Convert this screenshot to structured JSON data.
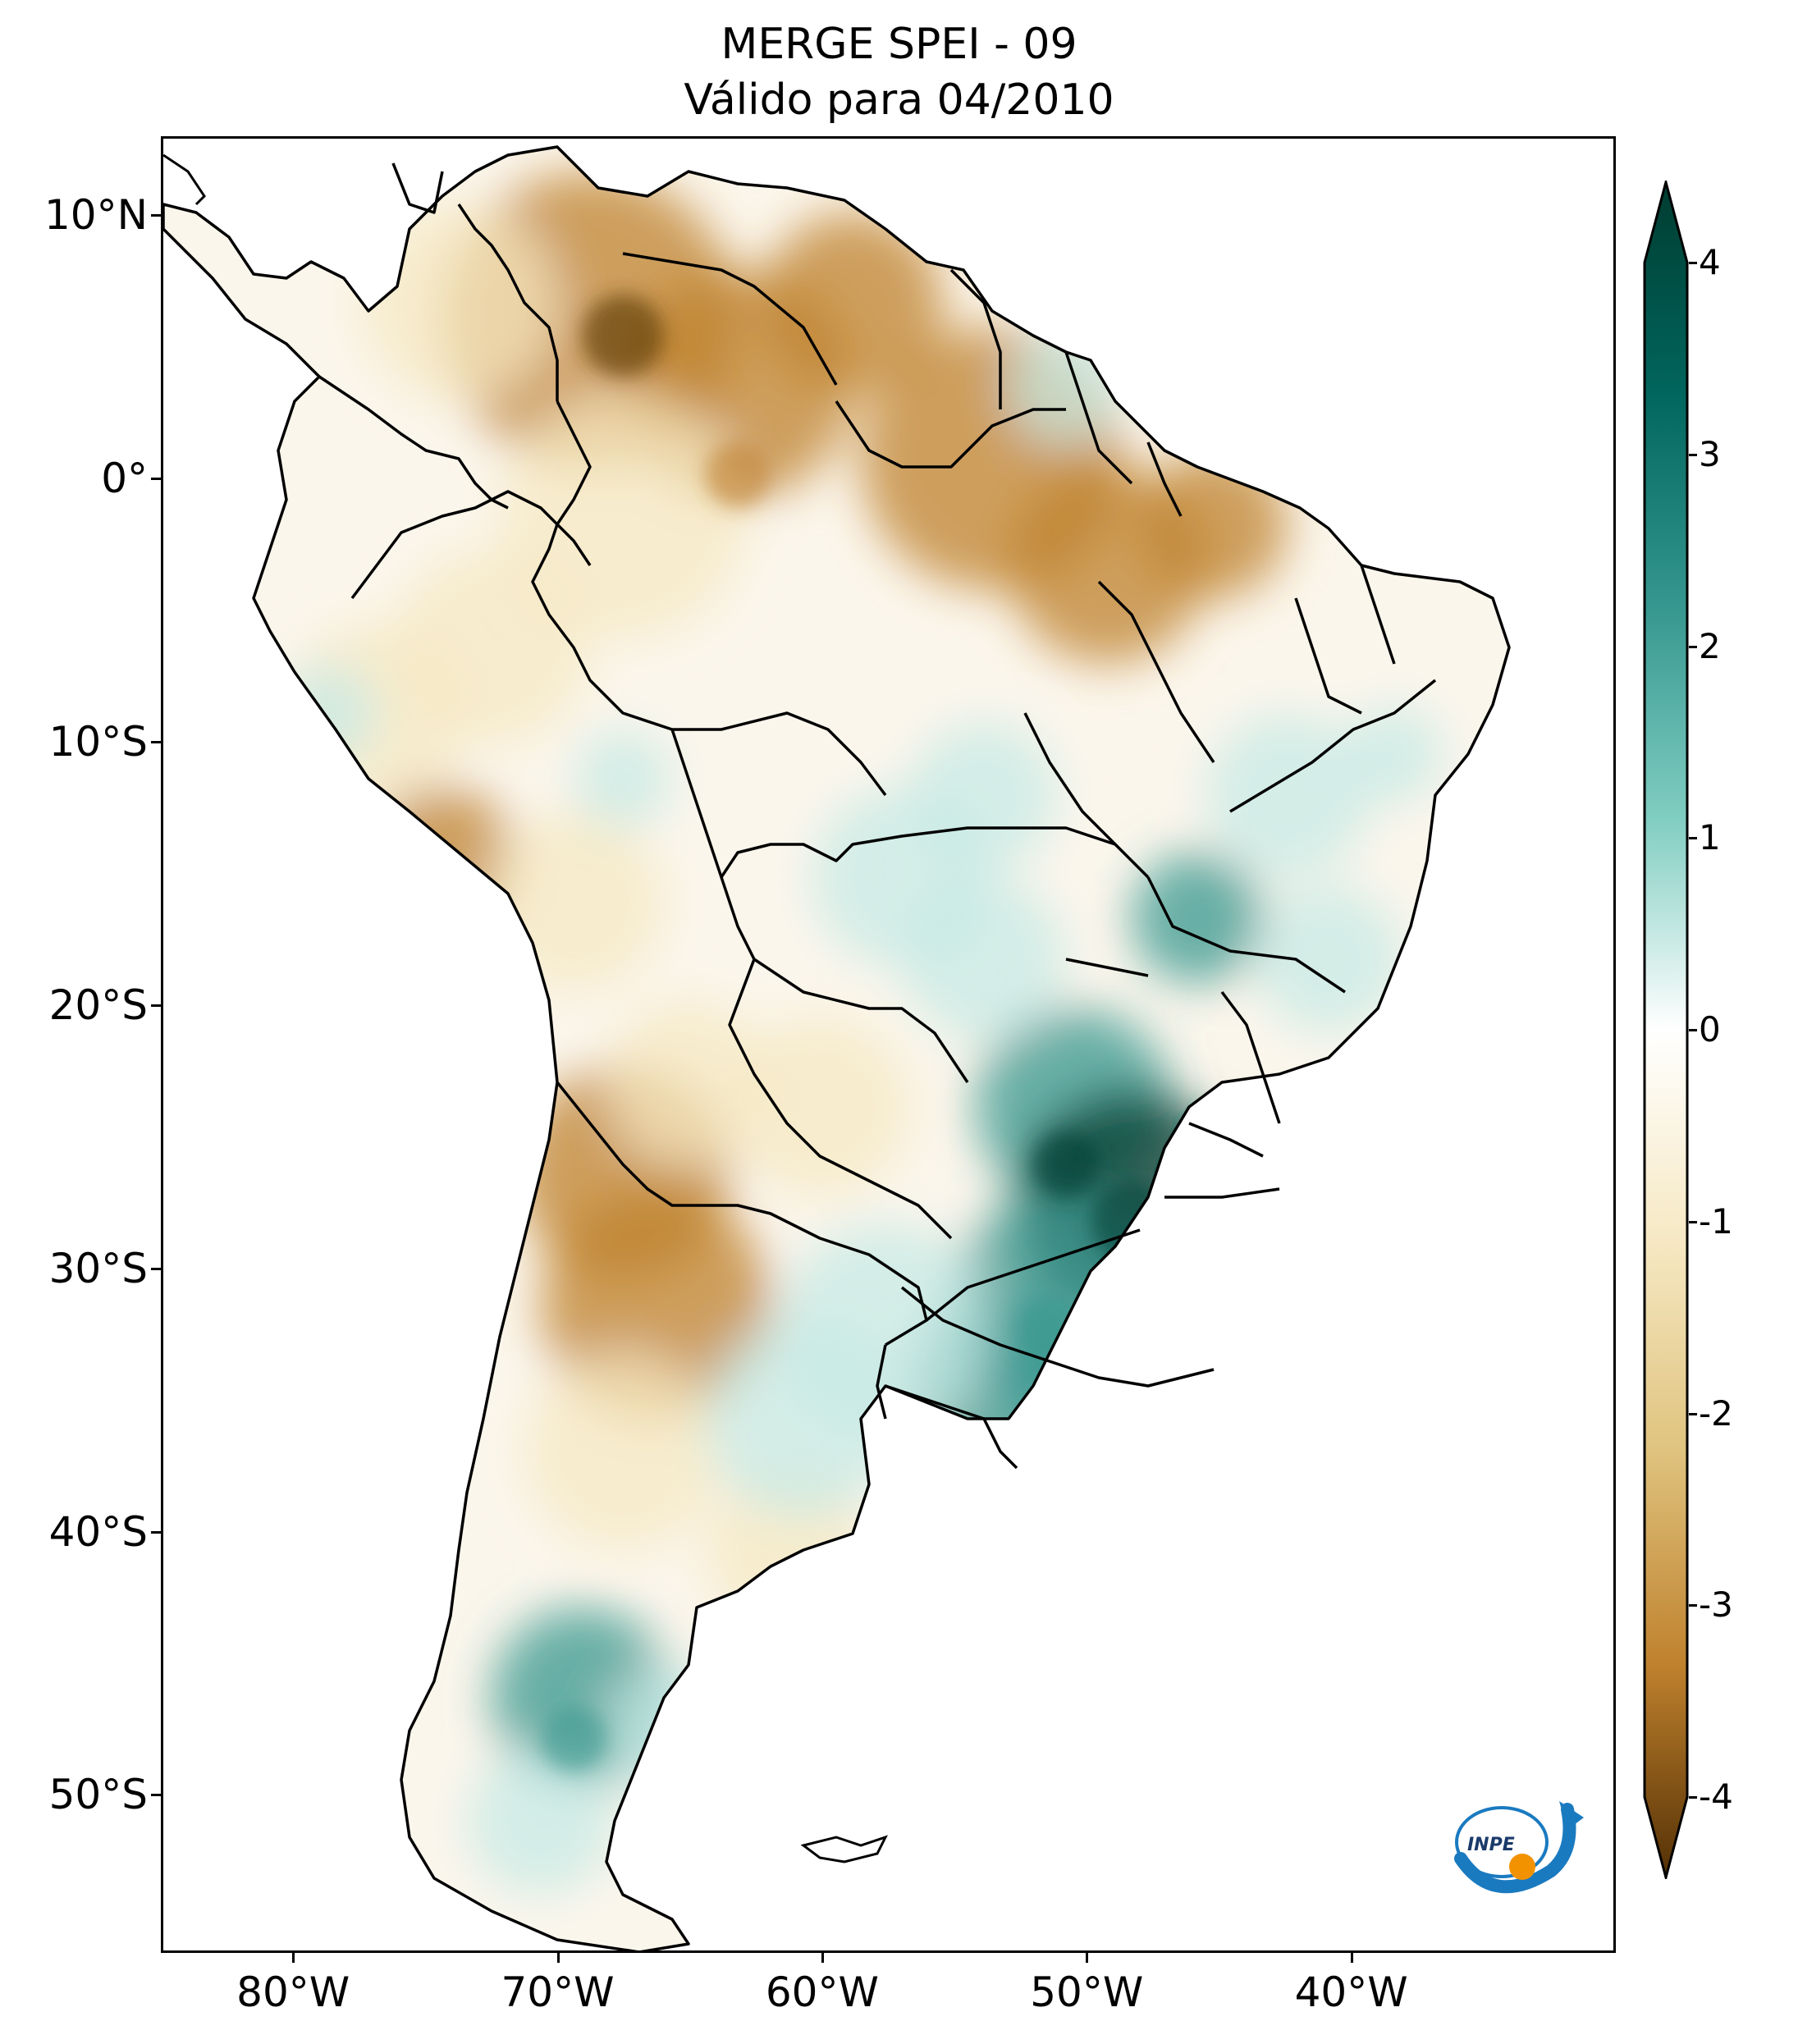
{
  "title": {
    "line1": "MERGE   SPEI - 09",
    "line2": "Válido para 04/2010"
  },
  "axes": {
    "lat_ticks": [
      {
        "label": "10°N",
        "value": 10
      },
      {
        "label": "0°",
        "value": 0
      },
      {
        "label": "10°S",
        "value": -10
      },
      {
        "label": "20°S",
        "value": -20
      },
      {
        "label": "30°S",
        "value": -30
      },
      {
        "label": "40°S",
        "value": -40
      },
      {
        "label": "50°S",
        "value": -50
      }
    ],
    "lon_ticks": [
      {
        "label": "80°W",
        "value": -80
      },
      {
        "label": "70°W",
        "value": -70
      },
      {
        "label": "60°W",
        "value": -60
      },
      {
        "label": "50°W",
        "value": -50
      },
      {
        "label": "40°W",
        "value": -40
      }
    ],
    "lon_range": [
      -85,
      -30
    ],
    "lat_range": [
      -56,
      13
    ]
  },
  "colorbar": {
    "range": [
      -4,
      4
    ],
    "ticks": [
      {
        "label": "4",
        "value": 4
      },
      {
        "label": "3",
        "value": 3
      },
      {
        "label": "2",
        "value": 2
      },
      {
        "label": "1",
        "value": 1
      },
      {
        "label": "0",
        "value": 0
      },
      {
        "label": "-1",
        "value": -1
      },
      {
        "label": "-2",
        "value": -2
      },
      {
        "label": "-3",
        "value": -3
      },
      {
        "label": "-4",
        "value": -4
      }
    ],
    "colors": {
      "very_dry": "#543005",
      "dry": "#bf812d",
      "slightly_dry": "#f6e8c3",
      "neutral": "#ffffff",
      "slightly_wet": "#c7eae5",
      "wet": "#35978f",
      "very_wet": "#003c30"
    }
  },
  "logo": {
    "text": "INPE",
    "blue": "#1a7ac0",
    "orange": "#f39200"
  }
}
